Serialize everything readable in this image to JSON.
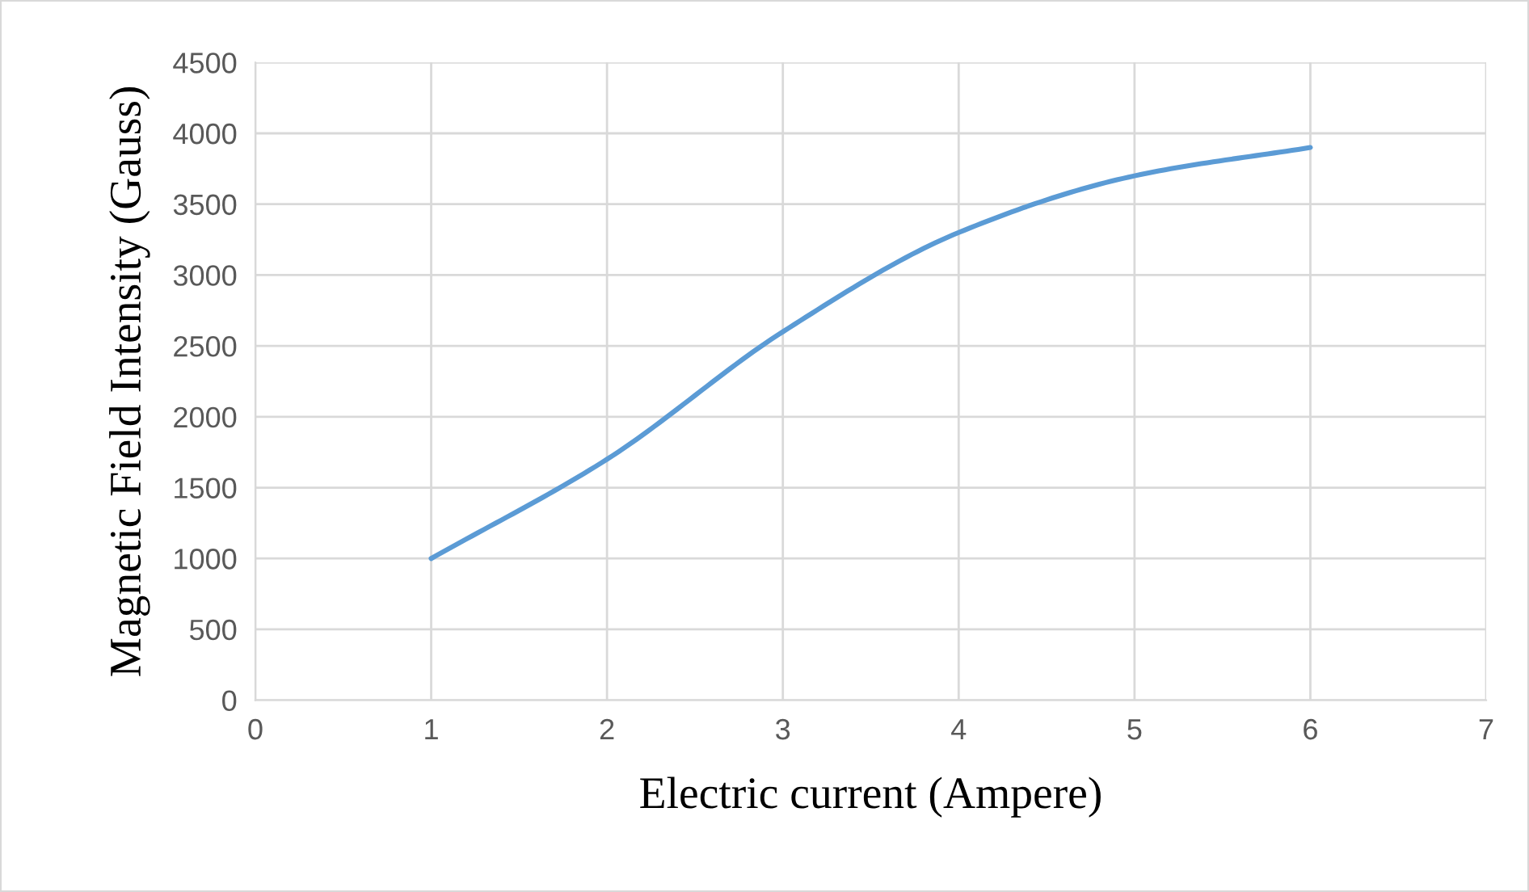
{
  "chart_data": {
    "type": "line",
    "xlabel": "Electric current (Ampere)",
    "ylabel": "Magnetic Field Intensity (Gauss)",
    "x": [
      1,
      2,
      3,
      4,
      5,
      6
    ],
    "series": [
      {
        "color": "#5b9bd5",
        "values": [
          1000,
          1700,
          2600,
          3300,
          3700,
          3900
        ]
      }
    ],
    "xlim": [
      0,
      7
    ],
    "xticks": [
      0,
      1,
      2,
      3,
      4,
      5,
      6,
      7
    ],
    "ylim": [
      0,
      4500
    ],
    "yticks": [
      0,
      500,
      1000,
      1500,
      2000,
      2500,
      3000,
      3500,
      4000,
      4500
    ],
    "grid": true,
    "marker": "none",
    "line_style": "solid"
  }
}
